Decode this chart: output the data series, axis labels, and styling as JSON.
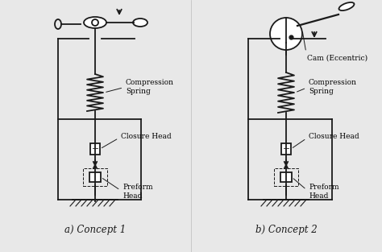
{
  "bg_color": "#e8e8e8",
  "paper_color": "#f0f0f0",
  "line_color": "#1a1a1a",
  "label_a": "a) Concept 1",
  "label_b": "b) Concept 2",
  "label_compression_spring": "Compression\nSpring",
  "label_closure_head": "Closure Head",
  "label_preform_head": "Preform\nHead",
  "label_cam": "Cam (Eccentric)",
  "font_size_label": 8.5,
  "font_size_annotation": 6.5,
  "lw_main": 1.3,
  "lw_thin": 0.8
}
